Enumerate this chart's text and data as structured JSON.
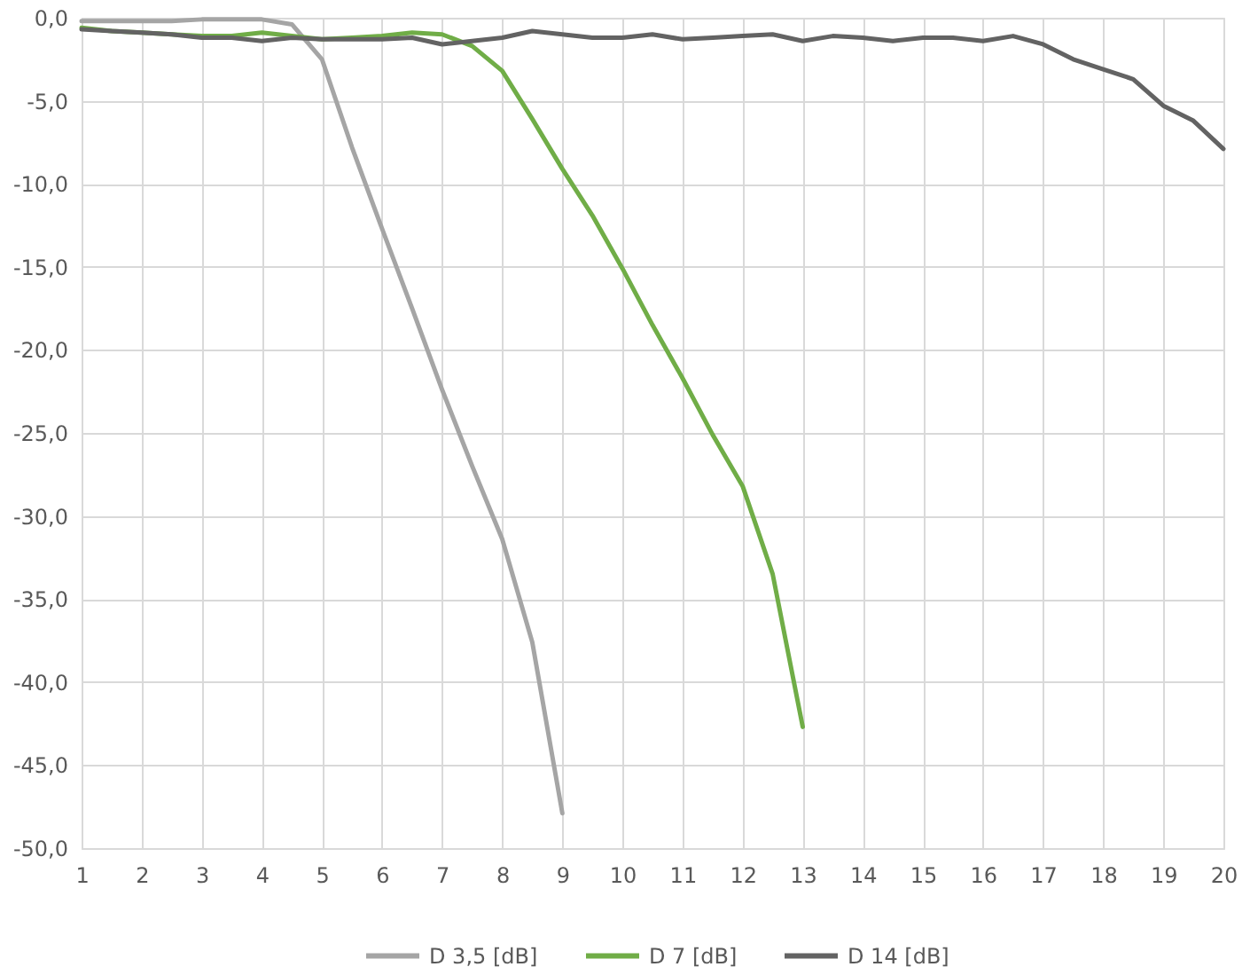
{
  "chart_data": {
    "type": "line",
    "xlim": [
      1,
      20
    ],
    "xticks": [
      1,
      2,
      3,
      4,
      5,
      6,
      7,
      8,
      9,
      10,
      11,
      12,
      13,
      14,
      15,
      16,
      17,
      18,
      19,
      20
    ],
    "ylim": [
      -50,
      0
    ],
    "yticks": [
      {
        "value": -50,
        "label": "-50,0"
      },
      {
        "value": -45,
        "label": "-45,0"
      },
      {
        "value": -40,
        "label": "-40,0"
      },
      {
        "value": -35,
        "label": "-35,0"
      },
      {
        "value": -30,
        "label": "-30,0"
      },
      {
        "value": -25,
        "label": "-25,0"
      },
      {
        "value": -20,
        "label": "-20,0"
      },
      {
        "value": -15,
        "label": "-15,0"
      },
      {
        "value": -10,
        "label": "-10,0"
      },
      {
        "value": -5,
        "label": "-5,0"
      },
      {
        "value": 0,
        "label": "0,0"
      }
    ],
    "grid": true,
    "legend": "bottom",
    "marker": "none",
    "line_style": "solid",
    "series": [
      {
        "name": "D 3,5 [dB]",
        "color": "#a5a5a5",
        "x": [
          1,
          1.5,
          2,
          2.5,
          3,
          3.5,
          4,
          4.5,
          5,
          5.5,
          6,
          6.5,
          7,
          7.5,
          8,
          8.5,
          9
        ],
        "values": [
          -0.2,
          -0.2,
          -0.2,
          -0.2,
          -0.1,
          -0.1,
          -0.1,
          -0.4,
          -2.5,
          -7.8,
          -12.7,
          -17.5,
          -22.4,
          -27.0,
          -31.4,
          -37.6,
          -47.9
        ]
      },
      {
        "name": "D 7 [dB]",
        "color": "#70ad47",
        "x": [
          1,
          1.5,
          2,
          2.5,
          3,
          3.5,
          4,
          4.5,
          5,
          5.5,
          6,
          6.5,
          7,
          7.5,
          8,
          8.5,
          9,
          9.5,
          10,
          10.5,
          11,
          11.5,
          12,
          12.5,
          13
        ],
        "values": [
          -0.6,
          -0.8,
          -0.9,
          -1.0,
          -1.1,
          -1.1,
          -0.9,
          -1.1,
          -1.3,
          -1.2,
          -1.1,
          -0.9,
          -1.0,
          -1.7,
          -3.2,
          -6.1,
          -9.1,
          -11.9,
          -15.1,
          -18.5,
          -21.7,
          -25.1,
          -28.2,
          -33.5,
          -42.7
        ]
      },
      {
        "name": "D 14 [dB]",
        "color": "#636363",
        "x": [
          1,
          1.5,
          2,
          2.5,
          3,
          3.5,
          4,
          4.5,
          5,
          5.5,
          6,
          6.5,
          7,
          7.5,
          8,
          8.5,
          9,
          9.5,
          10,
          10.5,
          11,
          11.5,
          12,
          12.5,
          13,
          13.5,
          14,
          14.5,
          15,
          15.5,
          16,
          16.5,
          17,
          17.5,
          18,
          18.5,
          19,
          19.5,
          20
        ],
        "values": [
          -0.7,
          -0.8,
          -0.9,
          -1.0,
          -1.2,
          -1.2,
          -1.4,
          -1.2,
          -1.3,
          -1.3,
          -1.3,
          -1.2,
          -1.6,
          -1.4,
          -1.2,
          -0.8,
          -1.0,
          -1.2,
          -1.2,
          -1.0,
          -1.3,
          -1.2,
          -1.1,
          -1.0,
          -1.4,
          -1.1,
          -1.2,
          -1.4,
          -1.2,
          -1.2,
          -1.4,
          -1.1,
          -1.6,
          -2.5,
          -3.1,
          -3.7,
          -5.3,
          -6.2,
          -7.9
        ]
      }
    ]
  }
}
